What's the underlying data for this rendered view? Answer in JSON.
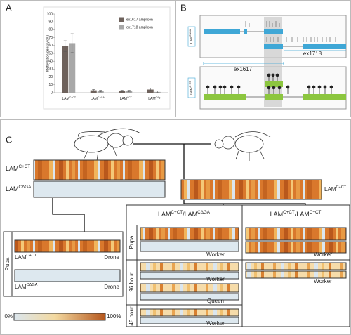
{
  "panel_a_label": "A",
  "chart_data": {
    "type": "bar",
    "y_label": "Methylation density (%)",
    "categories": [
      "LAM",
      "LAM",
      "LAM",
      "LAM"
    ],
    "category_superscripts": [
      "C+CT",
      "CΔGA",
      "ΔCT",
      "CΔg"
    ],
    "series": [
      {
        "name": "ex1617 amplicon",
        "color": "#6e625c",
        "values": [
          59,
          3,
          2,
          4
        ],
        "errors": [
          7,
          1,
          1,
          2
        ]
      },
      {
        "name": "ex1718 amplicon",
        "color": "#a8a8a8",
        "values": [
          63,
          2,
          2,
          1
        ],
        "errors": [
          12,
          1,
          1,
          1
        ]
      }
    ],
    "ylim": [
      0,
      100
    ],
    "yticks": [
      0,
      10,
      20,
      30,
      40,
      50,
      60,
      70,
      80,
      90,
      100
    ],
    "legend": "top-right"
  },
  "panel_b": {
    "label": "B",
    "rows": [
      {
        "base": "LAM",
        "sup": "CΔGA"
      },
      {
        "base": "LAM",
        "sup": "C+CT"
      }
    ],
    "amplicons": [
      "ex1617",
      "ex1718"
    ]
  },
  "panel_c": {
    "label": "C",
    "left_strips": [
      {
        "base": "LAM",
        "sup": "C+CT"
      },
      {
        "base": "LAM",
        "sup": "CΔGA"
      }
    ],
    "right_strip": {
      "base": "LAM",
      "sup": "C+CT"
    },
    "drone_stage": "Pupa",
    "drone_rows": [
      {
        "base": "LAM",
        "sup": "C+CT",
        "caste": "Drone"
      },
      {
        "base": "LAM",
        "sup": "CΔGA",
        "caste": "Drone"
      }
    ],
    "cross_headers": [
      {
        "a": "LAM",
        "a_sup": "C+CT",
        "sep": "/",
        "b": "LAM",
        "b_sup": "CΔGA"
      },
      {
        "a": "LAM",
        "a_sup": "C+CT",
        "sep": "/",
        "b": "LAM",
        "b_sup": "C+CT"
      }
    ],
    "stages": [
      "Pupa",
      "96 hour",
      "48 hour"
    ],
    "castes": [
      "Worker",
      "Worker",
      "Queen",
      "Worker",
      "Worker",
      "Worker"
    ],
    "scale": [
      "0%",
      "100%"
    ]
  }
}
